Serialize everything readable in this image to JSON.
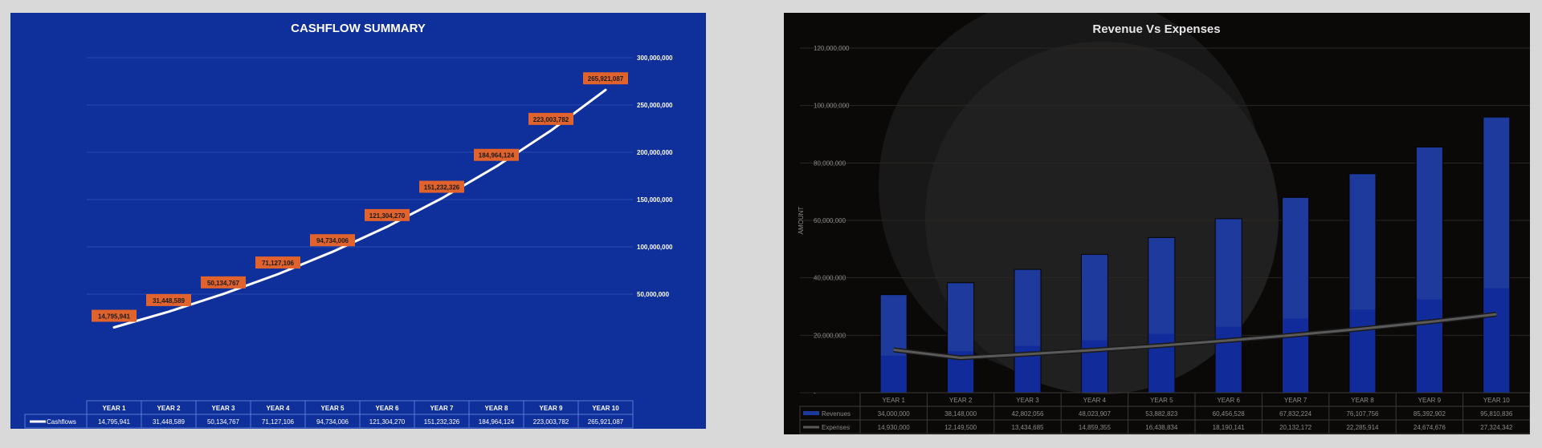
{
  "chart_data": [
    {
      "type": "line",
      "title": "CASHFLOW SUMMARY",
      "categories": [
        "YEAR 1",
        "YEAR 2",
        "YEAR 3",
        "YEAR 4",
        "YEAR 5",
        "YEAR 6",
        "YEAR 7",
        "YEAR 8",
        "YEAR 9",
        "YEAR 10"
      ],
      "series": [
        {
          "name": "Cashflows",
          "values": [
            14795941,
            31448589,
            50134767,
            71127106,
            94734006,
            121304270,
            151232326,
            184964124,
            223003782,
            265921087
          ]
        }
      ],
      "value_labels": [
        "14,795,941",
        "31,448,589",
        "50,134,767",
        "71,127,106",
        "94,734,006",
        "121,304,270",
        "151,232,326",
        "184,964,124",
        "223,003,782",
        "265,921,087"
      ],
      "y_tick_labels": [
        "300,000,000",
        "250,000,000",
        "200,000,000",
        "150,000,000",
        "100,000,000",
        "50,000,000"
      ],
      "y_ticks": [
        300000000,
        250000000,
        200000000,
        150000000,
        100000000,
        50000000
      ],
      "ylim": [
        0,
        300000000
      ],
      "grid": true,
      "legend": "data-table",
      "colors": {
        "background": "#0f2f9b",
        "line": "#ffffff",
        "label_bg": "#e0622c",
        "grid": "#2a49b0",
        "table_border": "#5b78d3"
      }
    },
    {
      "type": "bar",
      "title": "Revenue Vs Expenses",
      "ylabel": "AMOUNT",
      "categories": [
        "YEAR 1",
        "YEAR 2",
        "YEAR 3",
        "YEAR 4",
        "YEAR 5",
        "YEAR 6",
        "YEAR 7",
        "YEAR 8",
        "YEAR 9",
        "YEAR 10"
      ],
      "series": [
        {
          "name": "Revenues",
          "type": "bar",
          "values": [
            34000000,
            38148000,
            42802056,
            48023907,
            53882823,
            60456528,
            67832224,
            76107756,
            85392902,
            95810836
          ],
          "labels": [
            "34,000,000",
            "38,148,000",
            "42,802,056",
            "48,023,907",
            "53,882,823",
            "60,456,528",
            "67,832,224",
            "76,107,756",
            "85,392,902",
            "95,810,836"
          ]
        },
        {
          "name": "Expenses",
          "type": "line",
          "values": [
            14930000,
            12149500,
            13434685,
            14859355,
            16438834,
            18190141,
            20132172,
            22285914,
            24674676,
            27324342
          ],
          "labels": [
            "14,930,000",
            "12,149,500",
            "13,434,685",
            "14,859,355",
            "16,438,834",
            "18,190,141",
            "20,132,172",
            "22,285,914",
            "24,674,676",
            "27,324,342"
          ]
        }
      ],
      "y_tick_labels": [
        "120,000,000",
        "100,000,000",
        "80,000,000",
        "60,000,000",
        "40,000,000",
        "20,000,000",
        "-"
      ],
      "y_ticks": [
        120000000,
        100000000,
        80000000,
        60000000,
        40000000,
        20000000,
        0
      ],
      "ylim": [
        0,
        120000000
      ],
      "grid": true,
      "legend": "data-table",
      "colors": {
        "background": "#0b0908",
        "bar": "#1d3a9c",
        "line": "#5a5a5a",
        "grid": "#2a2622",
        "text": "#8a8a8a"
      }
    }
  ]
}
